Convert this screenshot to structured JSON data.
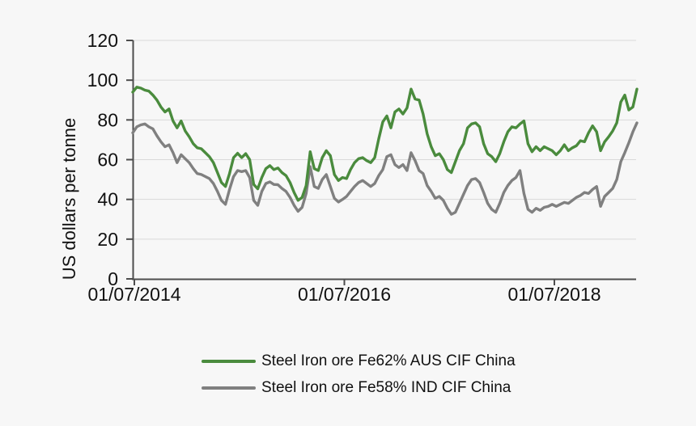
{
  "chart_data": {
    "type": "line",
    "ylabel": "US dollars per tonne",
    "ylim": [
      0,
      120
    ],
    "y_ticks": [
      0,
      20,
      40,
      60,
      80,
      100,
      120
    ],
    "x_tick_labels": [
      "01/07/2014",
      "01/07/2016",
      "01/07/2018"
    ],
    "grid": true,
    "legend_position": "bottom",
    "series": [
      {
        "name": "Steel Iron ore Fe62% AUS CIF China",
        "color": "#4a8b3d",
        "values": [
          94,
          96.5,
          96,
          95,
          94.5,
          92.5,
          90,
          86.5,
          84,
          85.5,
          79.5,
          76,
          79.5,
          74.5,
          71.5,
          68,
          66,
          65.5,
          63.5,
          61.5,
          58.5,
          53.5,
          48.5,
          46.5,
          53,
          61,
          63.2,
          61,
          63,
          60,
          47.5,
          45.3,
          51,
          55.5,
          57,
          55,
          55.8,
          53.5,
          52,
          48.5,
          43.5,
          39.5,
          41,
          47,
          64,
          55.5,
          54.5,
          61,
          64.5,
          62,
          52.5,
          49.5,
          51,
          50.5,
          55,
          58.5,
          60.5,
          61,
          59.5,
          58.5,
          61,
          70.5,
          79,
          82,
          76,
          84,
          85.5,
          83,
          86,
          95.5,
          90.5,
          90,
          83,
          73,
          66.5,
          62,
          63,
          60,
          55,
          53.5,
          59,
          64.5,
          68,
          76,
          78,
          78.5,
          76.5,
          68,
          63,
          61.5,
          59,
          63,
          69,
          74,
          76.5,
          76,
          78,
          79.5,
          68,
          64,
          66.5,
          64.5,
          66.5,
          65.5,
          64.5,
          62.5,
          64.5,
          67.5,
          64.5,
          66,
          67,
          69.5,
          69,
          73.5,
          77,
          74,
          64.5,
          69,
          71.5,
          74.5,
          78.5,
          89,
          92.5,
          85,
          86.5,
          95.5
        ]
      },
      {
        "name": "Steel Iron ore Fe58% IND CIF China",
        "color": "#808080",
        "values": [
          73.5,
          76.5,
          77.5,
          78,
          76.5,
          75.5,
          72,
          69,
          66.5,
          67.5,
          63.5,
          58.5,
          62.5,
          60.5,
          58.5,
          55.5,
          53,
          52.5,
          51.5,
          50.5,
          48,
          44,
          39.5,
          37.5,
          45,
          51.5,
          54.5,
          54,
          54.5,
          51,
          39.5,
          37,
          44,
          48,
          48.8,
          47.5,
          47.4,
          45.5,
          44,
          41,
          37,
          34,
          36,
          43,
          56.5,
          46.5,
          45.5,
          50,
          52.5,
          46.5,
          40.5,
          38.7,
          40,
          41.5,
          44,
          46.5,
          48.5,
          49.5,
          48,
          46.5,
          48,
          52,
          55,
          61.5,
          62.5,
          57.5,
          56,
          57.5,
          54.5,
          63.5,
          59.5,
          54.5,
          53,
          47,
          44,
          40.5,
          41.5,
          39.5,
          35.5,
          32.5,
          33.5,
          38,
          42.5,
          47,
          50,
          50.5,
          48.5,
          43.5,
          38,
          35,
          33.5,
          38,
          43.5,
          47,
          49.5,
          51,
          54.5,
          43,
          35,
          33.5,
          35.5,
          34.5,
          36,
          36.5,
          37.5,
          36.5,
          37.5,
          38.5,
          38,
          39.5,
          41,
          42,
          43.5,
          43,
          45,
          46.5,
          36.5,
          41.5,
          43.5,
          45.5,
          50,
          59,
          63.5,
          68.5,
          74,
          78.5
        ]
      }
    ]
  }
}
